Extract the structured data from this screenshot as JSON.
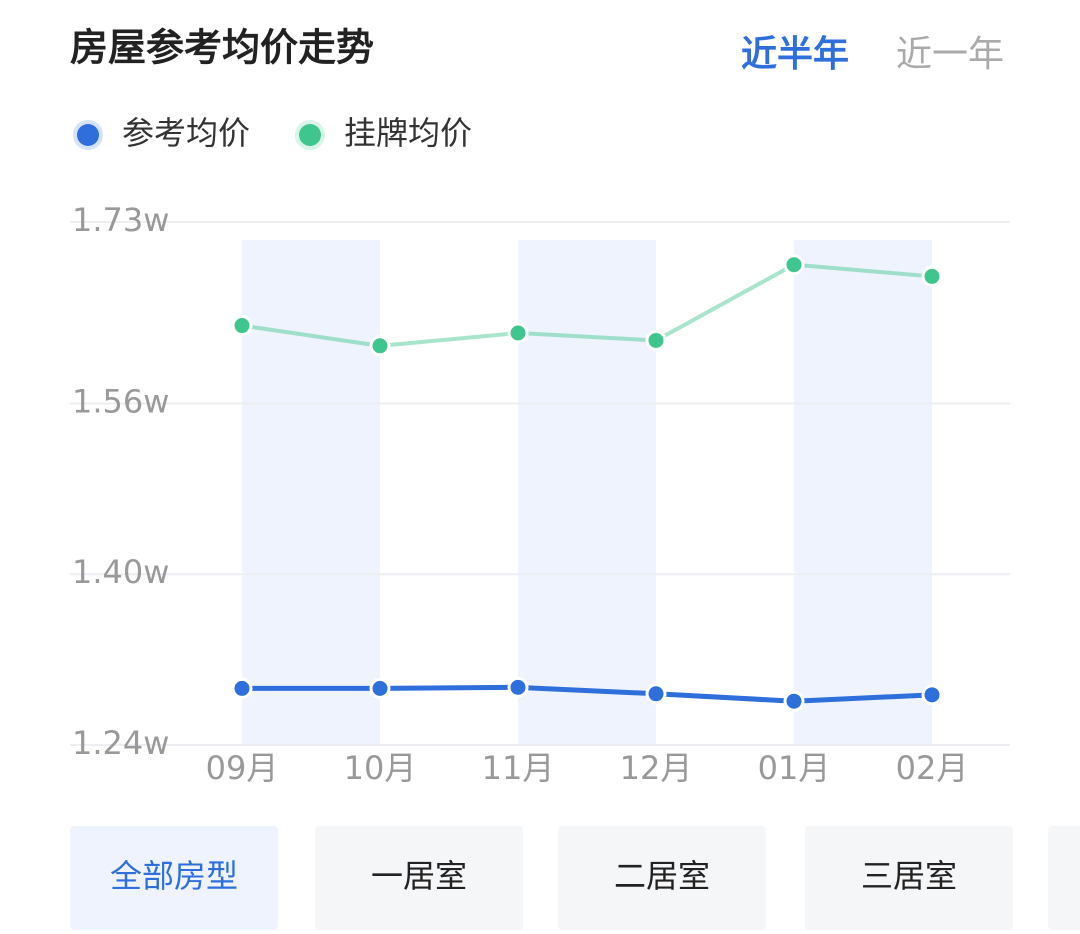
{
  "header": {
    "title": "房屋参考均价走势",
    "tabs": [
      "近半年",
      "近一年"
    ]
  },
  "chart_data": {
    "type": "line",
    "categories": [
      "09月",
      "10月",
      "11月",
      "12月",
      "01月",
      "02月"
    ],
    "series": [
      {
        "name": "参考均价",
        "color": "#2f6fdc",
        "values": [
          1.293,
          1.293,
          1.294,
          1.288,
          1.281,
          1.287
        ]
      },
      {
        "name": "挂牌均价",
        "color": "#3fc68e",
        "values": [
          1.633,
          1.614,
          1.626,
          1.619,
          1.69,
          1.679
        ]
      }
    ],
    "ylim": [
      1.24,
      1.73
    ],
    "yticks": [
      {
        "value": 1.73,
        "label": "1.73w"
      },
      {
        "value": 1.56,
        "label": "1.56w"
      },
      {
        "value": 1.4,
        "label": "1.40w"
      },
      {
        "value": 1.24,
        "label": "1.24w"
      }
    ],
    "grid": true
  },
  "buttons": [
    "全部房型",
    "一居室",
    "二居室",
    "三居室"
  ]
}
